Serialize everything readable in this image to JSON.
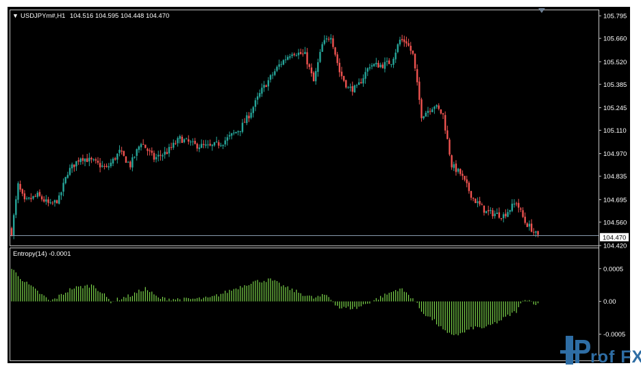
{
  "window": {
    "menu_glyph": "▼",
    "symbol": "USDJPYm#,H1",
    "ohlc": "104.516 104.595 104.448 104.470"
  },
  "colors": {
    "background": "#000000",
    "text": "#ffffff",
    "bull_candle": "#26a69a",
    "bear_candle": "#ef5350",
    "indicator": "#7cd64a",
    "price_line": "#8a9bb0"
  },
  "watermark": {
    "text": "Prof FX"
  },
  "chart_data": [
    {
      "type": "candlestick",
      "symbol": "USDJPYm#",
      "timeframe": "H1",
      "ylim": [
        104.42,
        105.82
      ],
      "y_ticks": [
        "105.795",
        "105.660",
        "105.520",
        "105.385",
        "105.245",
        "105.110",
        "104.970",
        "104.835",
        "104.695",
        "104.560",
        "104.420"
      ],
      "current_price": "104.470",
      "close_path_anchors": [
        [
          0,
          104.5
        ],
        [
          3,
          104.78
        ],
        [
          6,
          104.68
        ],
        [
          12,
          104.72
        ],
        [
          18,
          104.66
        ],
        [
          22,
          104.7
        ],
        [
          26,
          104.86
        ],
        [
          32,
          104.95
        ],
        [
          38,
          104.92
        ],
        [
          44,
          104.88
        ],
        [
          50,
          104.98
        ],
        [
          55,
          104.9
        ],
        [
          60,
          105.04
        ],
        [
          66,
          104.94
        ],
        [
          72,
          104.98
        ],
        [
          78,
          105.06
        ],
        [
          85,
          105.02
        ],
        [
          92,
          105.01
        ],
        [
          98,
          105.04
        ],
        [
          106,
          105.12
        ],
        [
          110,
          105.2
        ],
        [
          116,
          105.35
        ],
        [
          124,
          105.5
        ],
        [
          130,
          105.58
        ],
        [
          136,
          105.56
        ],
        [
          140,
          105.4
        ],
        [
          144,
          105.62
        ],
        [
          148,
          105.68
        ],
        [
          152,
          105.46
        ],
        [
          156,
          105.36
        ],
        [
          160,
          105.36
        ],
        [
          166,
          105.5
        ],
        [
          172,
          105.5
        ],
        [
          176,
          105.52
        ],
        [
          180,
          105.65
        ],
        [
          183,
          105.64
        ],
        [
          186,
          105.56
        ],
        [
          190,
          105.2
        ],
        [
          196,
          105.26
        ],
        [
          200,
          105.2
        ],
        [
          204,
          104.9
        ],
        [
          208,
          104.85
        ],
        [
          214,
          104.7
        ],
        [
          220,
          104.62
        ],
        [
          228,
          104.6
        ],
        [
          234,
          104.68
        ],
        [
          238,
          104.56
        ],
        [
          241,
          104.52
        ],
        [
          244,
          104.47
        ]
      ]
    },
    {
      "type": "bar",
      "name": "Entropy(14)",
      "label": "Entropy(14) -0.0001",
      "ylim": [
        -0.0009,
        0.0008
      ],
      "y_ticks": [
        "0.0005",
        "0.00",
        "-0.0005"
      ],
      "value_anchors": [
        [
          0,
          0.0005
        ],
        [
          6,
          0.0003
        ],
        [
          12,
          0.00015
        ],
        [
          18,
          0.0
        ],
        [
          28,
          0.0002
        ],
        [
          38,
          0.00025
        ],
        [
          46,
          0.0
        ],
        [
          56,
          0.0001
        ],
        [
          62,
          0.0002
        ],
        [
          68,
          5e-05
        ],
        [
          80,
          3e-05
        ],
        [
          92,
          5e-05
        ],
        [
          104,
          0.0002
        ],
        [
          112,
          0.0003
        ],
        [
          120,
          0.00033
        ],
        [
          128,
          0.0002
        ],
        [
          140,
          5e-05
        ],
        [
          146,
          0.0001
        ],
        [
          152,
          -0.0001
        ],
        [
          160,
          -0.0001
        ],
        [
          170,
          5e-05
        ],
        [
          180,
          0.0002
        ],
        [
          186,
          5e-05
        ],
        [
          190,
          -0.00015
        ],
        [
          196,
          -0.0003
        ],
        [
          202,
          -0.0005
        ],
        [
          208,
          -0.0005
        ],
        [
          214,
          -0.0004
        ],
        [
          220,
          -0.0004
        ],
        [
          226,
          -0.0003
        ],
        [
          234,
          -0.00015
        ],
        [
          238,
          5e-05
        ],
        [
          244,
          -5e-05
        ]
      ]
    }
  ]
}
